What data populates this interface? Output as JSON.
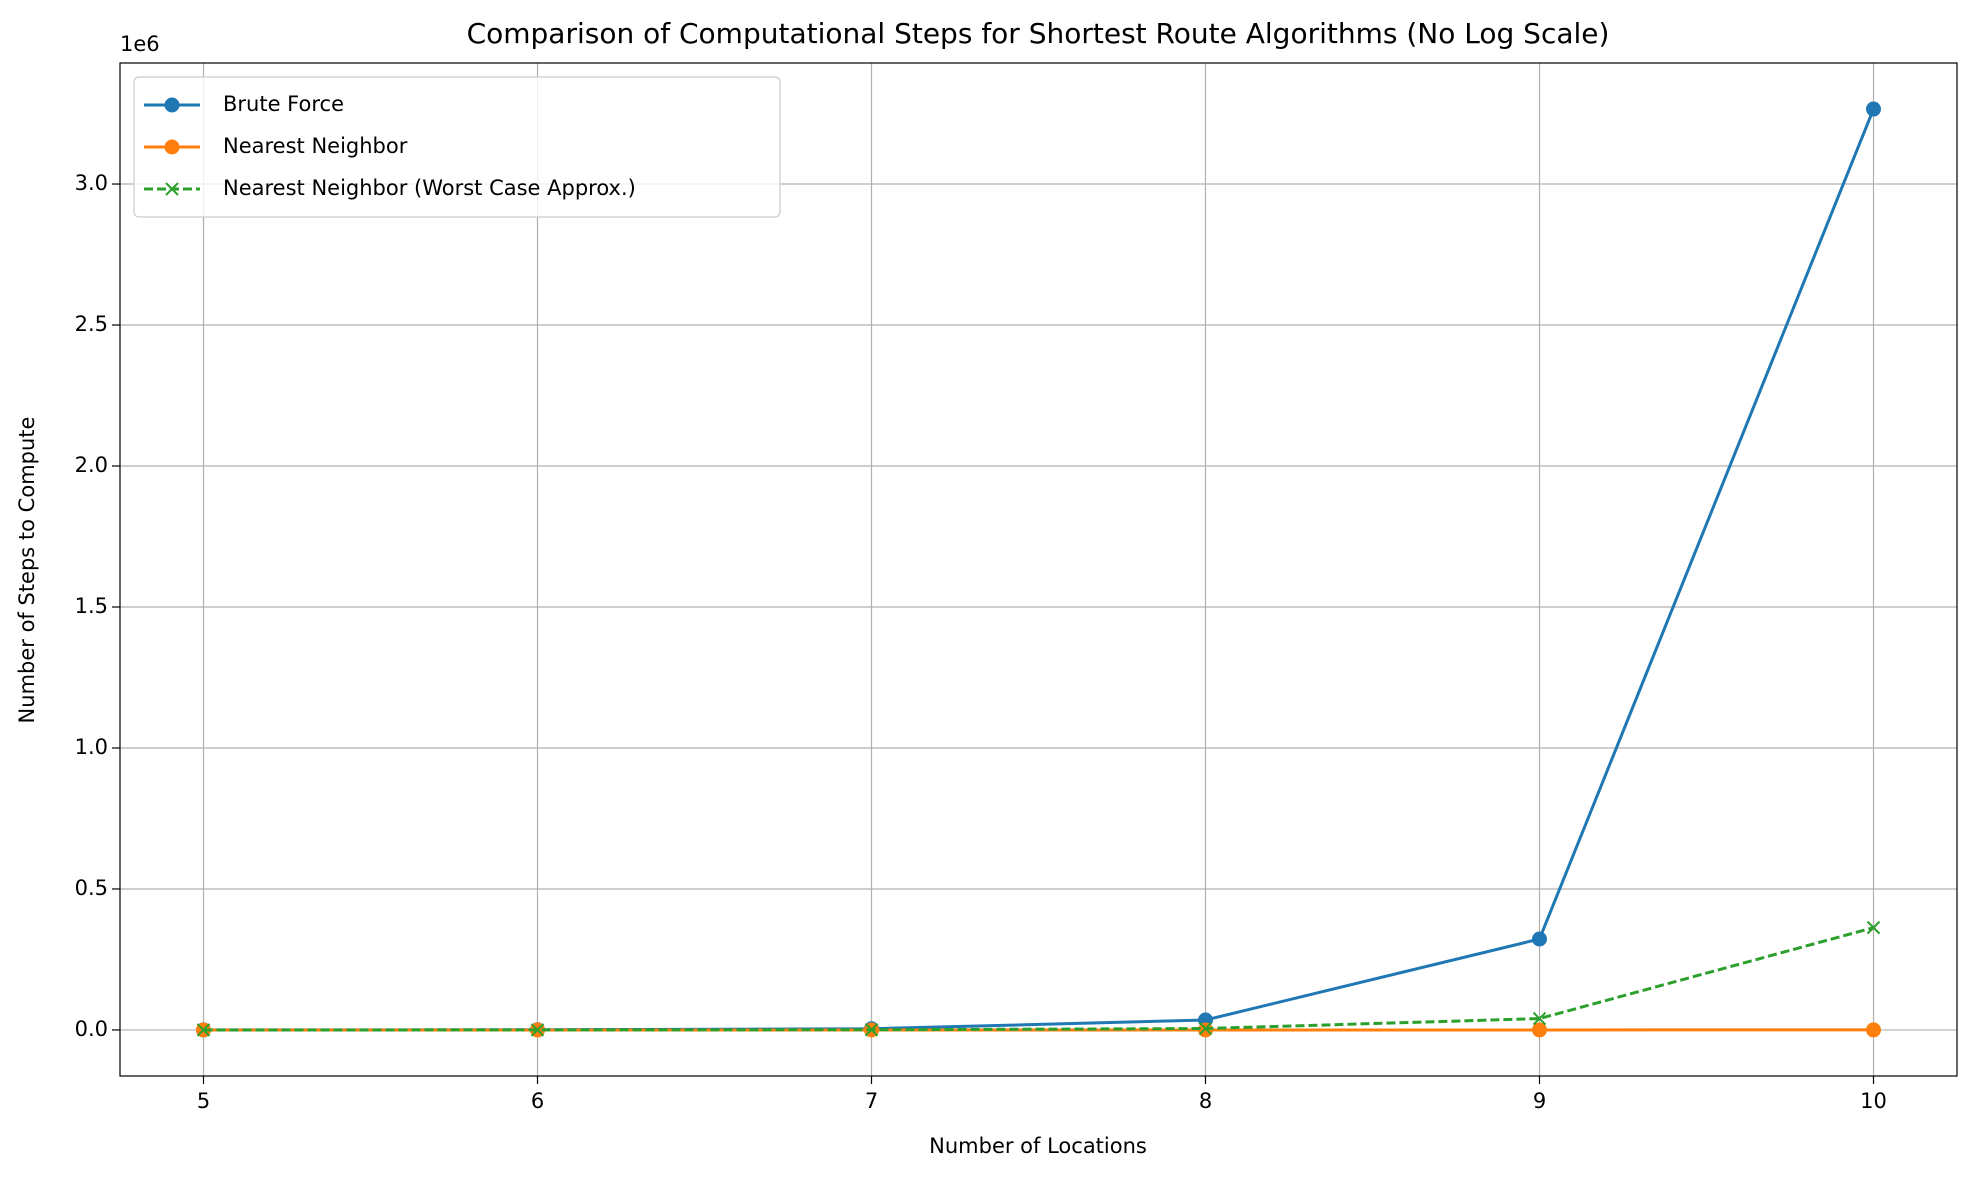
{
  "chart_data": {
    "type": "line",
    "title": "Comparison of Computational Steps for Shortest Route Algorithms (No Log Scale)",
    "xlabel": "Number of Locations",
    "ylabel": "Number of Steps to Compute",
    "y_offset_label": "1e6",
    "x": [
      5,
      6,
      7,
      8,
      9,
      10
    ],
    "series": [
      {
        "name": "Brute Force",
        "color": "#1f77b4",
        "marker": "o",
        "linestyle": "solid",
        "values": [
          96,
          600,
          4320,
          35280,
          322560,
          3265920
        ]
      },
      {
        "name": "Nearest Neighbor",
        "color": "#ff7f0e",
        "marker": "o",
        "linestyle": "solid",
        "values": [
          25,
          36,
          49,
          64,
          81,
          100
        ]
      },
      {
        "name": "Nearest Neighbor (Worst Case Approx.)",
        "color": "#2ca02c",
        "marker": "x",
        "linestyle": "dashed",
        "values": [
          24,
          120,
          720,
          5040,
          40320,
          362880
        ]
      }
    ],
    "xlim": [
      4.75,
      10.25
    ],
    "xticks": [
      5,
      6,
      7,
      8,
      9,
      10
    ],
    "ylim": [
      -163271,
      3429216
    ],
    "yticks": [
      {
        "value": 0,
        "label": "0.0"
      },
      {
        "value": 500000,
        "label": "0.5"
      },
      {
        "value": 1000000,
        "label": "1.0"
      },
      {
        "value": 1500000,
        "label": "1.5"
      },
      {
        "value": 2000000,
        "label": "2.0"
      },
      {
        "value": 2500000,
        "label": "2.5"
      },
      {
        "value": 3000000,
        "label": "3.0"
      }
    ],
    "grid": true,
    "legend": "upper left"
  }
}
